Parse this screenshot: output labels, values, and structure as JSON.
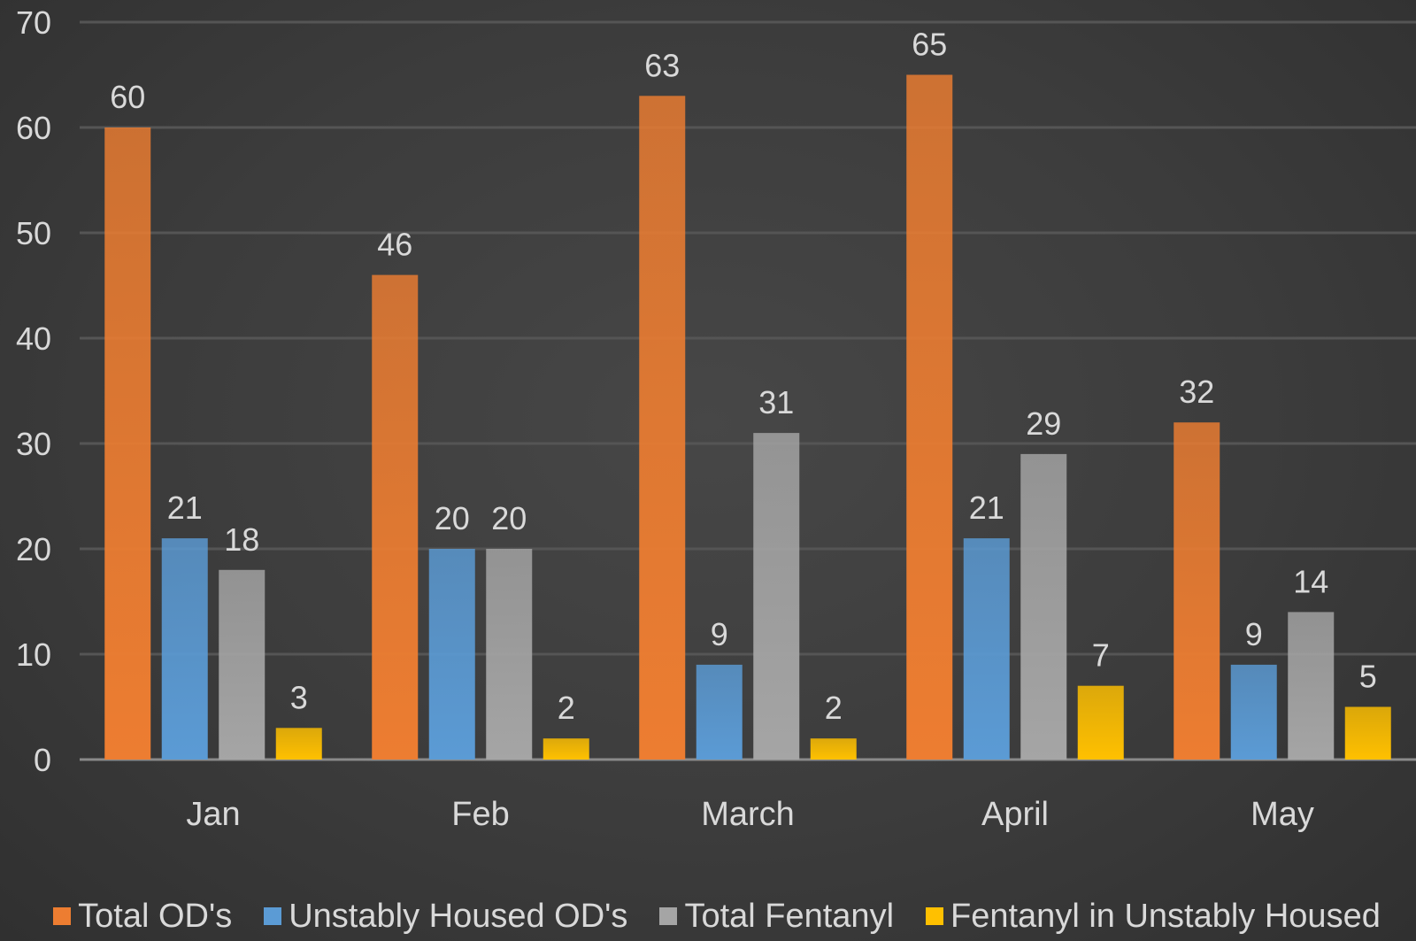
{
  "chart_data": {
    "type": "bar",
    "title": "",
    "xlabel": "",
    "ylabel": "",
    "ylim": [
      0,
      70
    ],
    "yticks": [
      0,
      10,
      20,
      30,
      40,
      50,
      60,
      70
    ],
    "grid": true,
    "legend_position": "bottom",
    "categories": [
      "Jan",
      "Feb",
      "March",
      "April",
      "May"
    ],
    "series": [
      {
        "name": "Total OD's",
        "color": "#ed7d31",
        "values": [
          60,
          46,
          63,
          65,
          32
        ]
      },
      {
        "name": "Unstably Housed OD's",
        "color": "#5b9bd5",
        "values": [
          21,
          20,
          9,
          21,
          9
        ]
      },
      {
        "name": "Total Fentanyl",
        "color": "#a5a5a5",
        "values": [
          18,
          20,
          31,
          29,
          14
        ]
      },
      {
        "name": "Fentanyl in Unstably Housed",
        "color": "#ffc000",
        "values": [
          3,
          2,
          2,
          7,
          5
        ]
      }
    ]
  },
  "colors": {
    "background": "#3a3a3a",
    "gridline": "#555555",
    "axis": "#8a8a8a",
    "text": "#d9d9d9"
  }
}
